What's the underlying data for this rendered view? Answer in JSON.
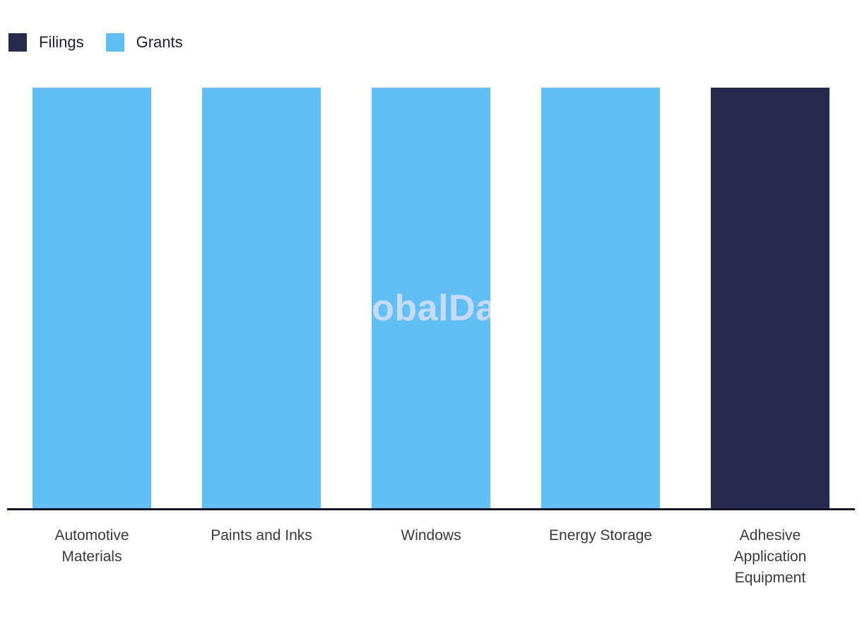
{
  "watermark": "GlobalData",
  "legend": {
    "items": [
      {
        "label": "Filings",
        "color": "#272a4e"
      },
      {
        "label": "Grants",
        "color": "#61bff5"
      }
    ]
  },
  "chart_data": {
    "type": "bar",
    "title": "",
    "xlabel": "",
    "ylabel": "",
    "categories": [
      "Automotive Materials",
      "Paints and Inks",
      "Windows",
      "Energy Storage",
      "Adhesive Application Equipment"
    ],
    "series": [
      {
        "name": "Filings",
        "color": "#272a4e",
        "values": [
          0,
          0,
          0,
          0,
          1
        ]
      },
      {
        "name": "Grants",
        "color": "#61bff5",
        "values": [
          1,
          1,
          1,
          1,
          0
        ]
      }
    ],
    "bars": [
      {
        "category": "Automotive Materials",
        "series": "Grants",
        "relative_height": 1.0
      },
      {
        "category": "Paints and Inks",
        "series": "Grants",
        "relative_height": 1.0
      },
      {
        "category": "Windows",
        "series": "Grants",
        "relative_height": 1.0
      },
      {
        "category": "Energy Storage",
        "series": "Grants",
        "relative_height": 1.0
      },
      {
        "category": "Adhesive Application Equipment",
        "series": "Filings",
        "relative_height": 1.0
      }
    ],
    "ylim": [
      0,
      1
    ],
    "value_axis_visible": false,
    "grid": false,
    "legend_position": "top-left",
    "axis_line_color": "#131528"
  }
}
